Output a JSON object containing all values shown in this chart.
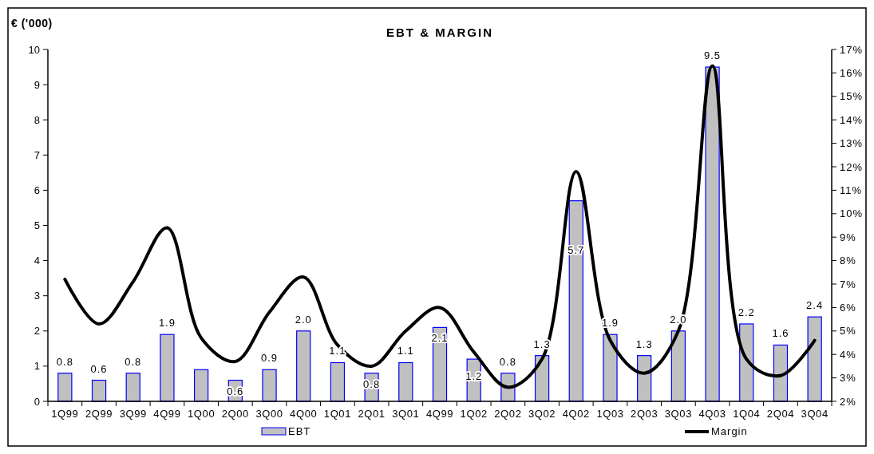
{
  "chart_data": {
    "type": "bar",
    "title": "EBT & MARGIN",
    "ylabel": "€ ('000)",
    "categories": [
      "1Q99",
      "2Q99",
      "3Q99",
      "4Q99",
      "1Q00",
      "2Q00",
      "3Q00",
      "4Q00",
      "1Q01",
      "2Q01",
      "3Q01",
      "4Q99",
      "1Q02",
      "2Q02",
      "3Q02",
      "4Q02",
      "1Q03",
      "2Q03",
      "3Q03",
      "4Q03",
      "1Q04",
      "2Q04",
      "3Q04"
    ],
    "series": [
      {
        "name": "EBT",
        "color": "#c0c0c0",
        "values": [
          0.8,
          0.6,
          0.8,
          1.9,
          0.9,
          0.6,
          0.9,
          2.0,
          1.1,
          0.8,
          1.1,
          2.1,
          1.2,
          0.8,
          1.3,
          5.7,
          1.9,
          1.3,
          2.0,
          9.5,
          2.2,
          1.6,
          2.4
        ],
        "value_labels": [
          "0.8",
          "0.6",
          "0.8",
          "1.9",
          null,
          "0.6",
          "0.9",
          "2.0",
          "1.1",
          "0.8",
          "1.1",
          "2.1",
          "1.2",
          "0.8",
          "1.3",
          "5.7",
          "1.9",
          "1.3",
          "2.0",
          "9.5",
          "2.2",
          "1.6",
          "2.4"
        ]
      },
      {
        "name": "Margin",
        "type": "line",
        "axis": "y2",
        "color": "#000000",
        "values": [
          7.2,
          5.3,
          7.1,
          9.4,
          4.7,
          3.7,
          5.8,
          7.3,
          4.4,
          3.5,
          5.0,
          6.0,
          4.1,
          2.6,
          3.8,
          11.8,
          4.6,
          3.2,
          5.0,
          16.3,
          3.8,
          3.1,
          4.6
        ]
      }
    ],
    "ylim": [
      0,
      10
    ],
    "yticks": [
      0,
      1,
      2,
      3,
      4,
      5,
      6,
      7,
      8,
      9,
      10
    ],
    "y2lim": [
      2,
      17
    ],
    "y2ticks": [
      {
        "value": 2,
        "label": "2%"
      },
      {
        "value": 3,
        "label": "3%"
      },
      {
        "value": 4,
        "label": "4%"
      },
      {
        "value": 5,
        "label": "5%"
      },
      {
        "value": 6,
        "label": "6%"
      },
      {
        "value": 7,
        "label": "7%"
      },
      {
        "value": 8,
        "label": "8%"
      },
      {
        "value": 9,
        "label": "9%"
      },
      {
        "value": 10,
        "label": "10%"
      },
      {
        "value": 11,
        "label": "11%"
      },
      {
        "value": 12,
        "label": "12%"
      },
      {
        "value": 13,
        "label": "13%"
      },
      {
        "value": 14,
        "label": "14%"
      },
      {
        "value": 15,
        "label": "15%"
      },
      {
        "value": 16,
        "label": "16%"
      },
      {
        "value": 17,
        "label": "17%"
      }
    ],
    "legend": "bottom",
    "marker": "none",
    "line_style": "solid",
    "grid": false
  }
}
